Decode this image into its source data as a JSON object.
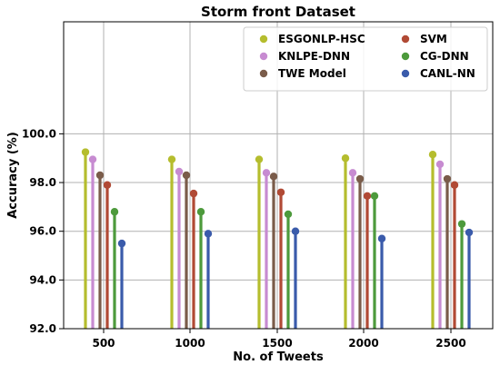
{
  "chart_data": {
    "type": "lollipop",
    "title": "Storm front Dataset",
    "xlabel": "No. of Tweets",
    "ylabel": "Accuracy (%)",
    "categories": [
      "500",
      "1000",
      "1500",
      "2000",
      "2500"
    ],
    "ylim": [
      92.0,
      104.6
    ],
    "yticks": [
      "92.0",
      "94.0",
      "96.0",
      "98.0",
      "100.0"
    ],
    "grid": true,
    "legend_position": "top-right",
    "series": [
      {
        "name": "ESGONLP-HSC",
        "color": "#b5bd2e",
        "values": [
          99.25,
          98.95,
          98.95,
          99.0,
          99.15
        ]
      },
      {
        "name": "KNLPE-DNN",
        "color": "#c78bd1",
        "values": [
          98.95,
          98.45,
          98.4,
          98.4,
          98.75
        ]
      },
      {
        "name": "TWE Model",
        "color": "#7a5c4a",
        "values": [
          98.3,
          98.3,
          98.25,
          98.15,
          98.15
        ]
      },
      {
        "name": "SVM",
        "color": "#b14a35",
        "values": [
          97.9,
          97.55,
          97.6,
          97.45,
          97.9
        ]
      },
      {
        "name": "CG-DNN",
        "color": "#4d9a3c",
        "values": [
          96.8,
          96.8,
          96.7,
          97.45,
          96.3
        ]
      },
      {
        "name": "CANL-NN",
        "color": "#3a5bab",
        "values": [
          95.5,
          95.9,
          96.0,
          95.7,
          95.95
        ]
      }
    ]
  }
}
